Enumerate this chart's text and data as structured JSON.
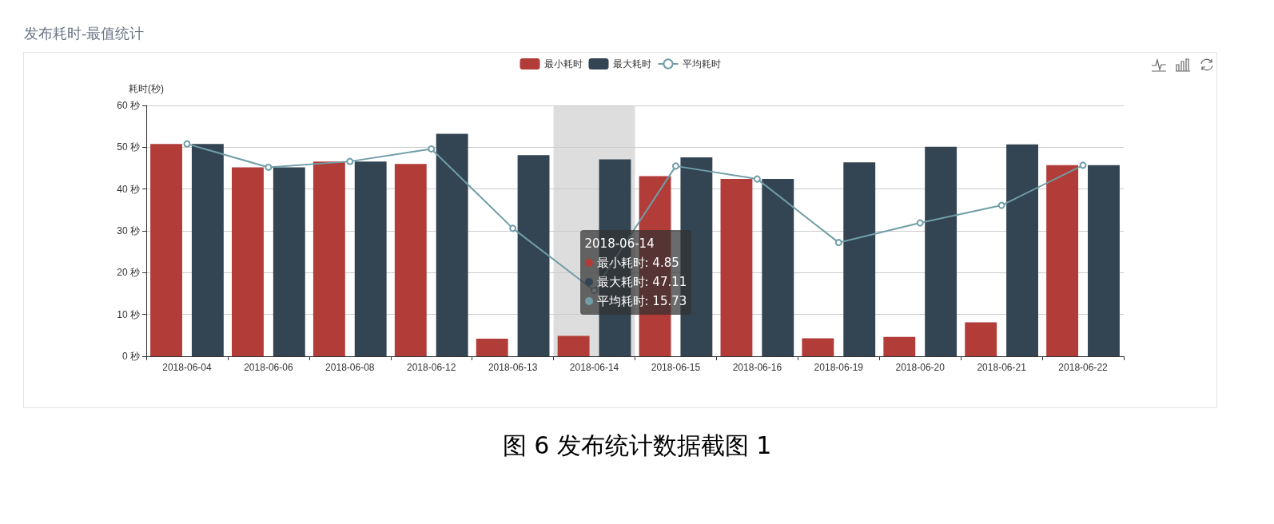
{
  "chart_data": {
    "type": "bar",
    "title": "发布耗时-最值统计",
    "ylabel": "耗时(秒)",
    "categories": [
      "2018-06-04",
      "2018-06-06",
      "2018-06-08",
      "2018-06-12",
      "2018-06-13",
      "2018-06-14",
      "2018-06-15",
      "2018-06-16",
      "2018-06-19",
      "2018-06-20",
      "2018-06-21",
      "2018-06-22"
    ],
    "series": [
      {
        "name": "最小耗时",
        "color": "#b23c38",
        "values": [
          50.8,
          45.2,
          46.6,
          46.0,
          4.2,
          4.85,
          43.1,
          42.4,
          4.3,
          4.65,
          8.1,
          45.7
        ]
      },
      {
        "name": "最大耗时",
        "color": "#334452",
        "values": [
          50.8,
          45.2,
          46.6,
          53.2,
          48.1,
          47.11,
          47.6,
          42.4,
          46.4,
          50.1,
          50.7,
          45.7
        ]
      },
      {
        "name": "平均耗时",
        "type": "line",
        "color": "#6f9ea8",
        "marker": "circle",
        "values": [
          50.8,
          45.2,
          46.6,
          49.6,
          30.6,
          15.73,
          45.5,
          42.4,
          27.2,
          31.9,
          36.1,
          45.7
        ]
      }
    ],
    "ylim": [
      0,
      60
    ],
    "yticks": [
      {
        "value": 0,
        "label": "0 秒"
      },
      {
        "value": 10,
        "label": "10 秒"
      },
      {
        "value": 20,
        "label": "20 秒"
      },
      {
        "value": 30,
        "label": "30 秒"
      },
      {
        "value": 40,
        "label": "40 秒"
      },
      {
        "value": 50,
        "label": "50 秒"
      },
      {
        "value": 60,
        "label": "60 秒"
      }
    ],
    "grid": "y",
    "legend": "top",
    "bands": [
      {
        "axis": "x",
        "from": "2018-06-14",
        "to": "2018-06-14",
        "color": "#dddddd"
      }
    ],
    "annotations": [
      "图 6  发布统计数据截图 1",
      "2018-06-14",
      "最小耗时: 4.85",
      "最大耗时: 47.11",
      "平均耗时: 15.73"
    ]
  }
}
